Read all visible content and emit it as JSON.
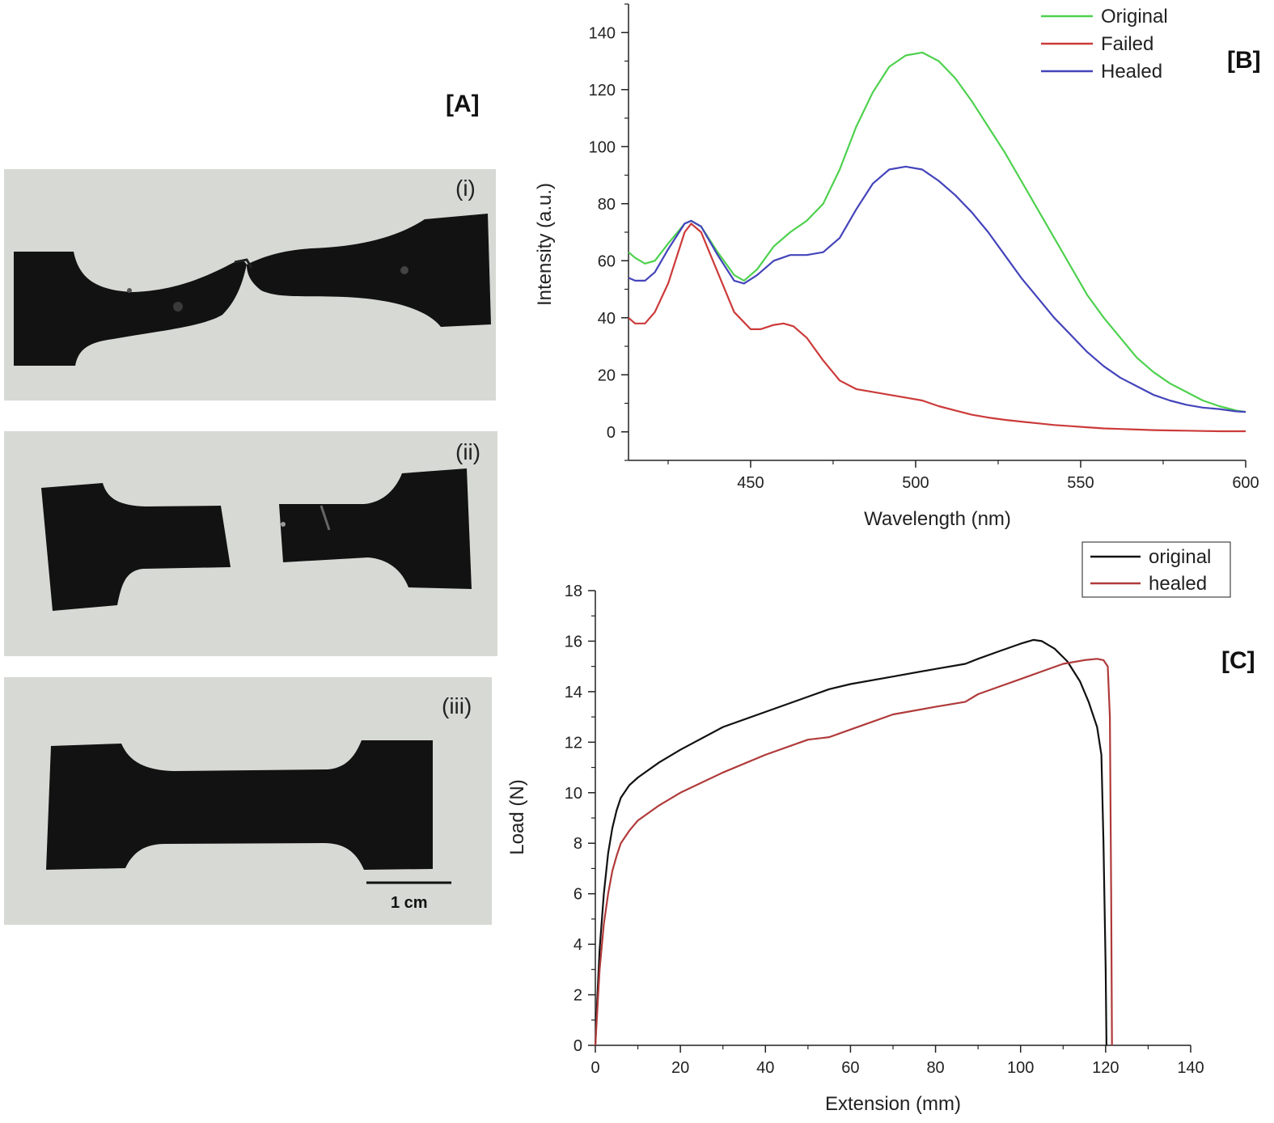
{
  "panels": {
    "a_label": "[A]",
    "b_label": "[B]",
    "c_label": "[C]"
  },
  "photos": {
    "labels": [
      "(i)",
      "(ii)",
      "(iii)"
    ],
    "scale_bar_label": "1 cm",
    "colors": {
      "background": "#d7d9d4",
      "specimen": "#121212"
    }
  },
  "chart_data": [
    {
      "type": "line",
      "panel": "[B]",
      "xlabel": "Wavelength (nm)",
      "ylabel": "Intensity (a.u.)",
      "xlim": [
        413,
        600
      ],
      "ylim": [
        -10,
        150
      ],
      "xticks": [
        450,
        500,
        550,
        600
      ],
      "yticks": [
        0,
        20,
        40,
        60,
        80,
        100,
        120,
        140
      ],
      "grid": false,
      "legend": "top-right",
      "series": [
        {
          "name": "Original",
          "color": "#4ed14e",
          "x": [
            413,
            415,
            418,
            421,
            425,
            430,
            432,
            435,
            440,
            445,
            448,
            452,
            457,
            462,
            467,
            472,
            477,
            482,
            487,
            492,
            497,
            502,
            507,
            512,
            517,
            522,
            527,
            532,
            537,
            542,
            547,
            552,
            557,
            562,
            567,
            572,
            577,
            582,
            587,
            592,
            597,
            600
          ],
          "y": [
            63,
            61,
            59,
            60,
            66,
            73,
            74,
            72,
            63,
            55,
            53,
            57,
            65,
            70,
            74,
            80,
            92,
            107,
            119,
            128,
            132,
            133,
            130,
            124,
            116,
            107,
            98,
            88,
            78,
            68,
            58,
            48,
            40,
            33,
            26,
            21,
            17,
            14,
            11,
            9,
            7.5,
            7
          ]
        },
        {
          "name": "Failed",
          "color": "#cc3a3a",
          "x": [
            413,
            415,
            418,
            421,
            425,
            430,
            432,
            435,
            440,
            445,
            450,
            453,
            457,
            460,
            463,
            467,
            472,
            477,
            482,
            487,
            492,
            497,
            502,
            507,
            512,
            517,
            522,
            527,
            532,
            537,
            542,
            547,
            552,
            557,
            562,
            567,
            572,
            577,
            582,
            587,
            592,
            600
          ],
          "y": [
            40,
            38,
            38,
            42,
            52,
            70,
            73,
            70,
            56,
            42,
            36,
            36,
            37.5,
            38,
            37,
            33,
            25,
            18,
            15,
            14,
            13,
            12,
            11,
            9,
            7.5,
            6,
            5,
            4.2,
            3.6,
            3,
            2.4,
            2,
            1.6,
            1.2,
            1,
            0.8,
            0.6,
            0.5,
            0.4,
            0.3,
            0.2,
            0.2
          ]
        },
        {
          "name": "Healed",
          "color": "#4444bb",
          "x": [
            413,
            415,
            418,
            421,
            425,
            430,
            432,
            435,
            440,
            445,
            448,
            452,
            457,
            462,
            467,
            472,
            477,
            482,
            487,
            492,
            497,
            502,
            507,
            512,
            517,
            522,
            527,
            532,
            537,
            542,
            547,
            552,
            557,
            562,
            567,
            572,
            577,
            582,
            587,
            592,
            597,
            600
          ],
          "y": [
            54,
            53,
            53,
            56,
            64,
            73,
            74,
            72,
            62,
            53,
            52,
            55,
            60,
            62,
            62,
            63,
            68,
            78,
            87,
            92,
            93,
            92,
            88,
            83,
            77,
            70,
            62,
            54,
            47,
            40,
            34,
            28,
            23,
            19,
            16,
            13,
            11,
            9.5,
            8.5,
            8,
            7.2,
            7
          ]
        }
      ]
    },
    {
      "type": "line",
      "panel": "[C]",
      "xlabel": "Extension (mm)",
      "ylabel": "Load (N)",
      "xlim": [
        0,
        140
      ],
      "ylim": [
        0,
        18
      ],
      "xticks": [
        0,
        20,
        40,
        60,
        80,
        100,
        120,
        140
      ],
      "yticks": [
        0,
        2,
        4,
        6,
        8,
        10,
        12,
        14,
        16,
        18
      ],
      "grid": false,
      "legend": "top-right",
      "series": [
        {
          "name": "original",
          "color": "#111111",
          "x": [
            0,
            0.5,
            1,
            2,
            3,
            4,
            5,
            6,
            8,
            10,
            15,
            20,
            30,
            40,
            50,
            55,
            60,
            70,
            80,
            87,
            90,
            95,
            100,
            103,
            105,
            108,
            111,
            114,
            116,
            118,
            119,
            119.5,
            120,
            120.2
          ],
          "y": [
            0,
            2,
            3.8,
            6,
            7.6,
            8.6,
            9.3,
            9.8,
            10.3,
            10.6,
            11.2,
            11.7,
            12.6,
            13.2,
            13.8,
            14.1,
            14.3,
            14.6,
            14.9,
            15.1,
            15.3,
            15.6,
            15.9,
            16.05,
            16.0,
            15.7,
            15.2,
            14.4,
            13.6,
            12.6,
            11.5,
            8,
            3,
            0
          ]
        },
        {
          "name": "healed",
          "color": "#b03a3a",
          "x": [
            0,
            0.5,
            1,
            2,
            3,
            4,
            5,
            6,
            8,
            10,
            15,
            20,
            30,
            40,
            50,
            55,
            60,
            70,
            80,
            87,
            90,
            95,
            100,
            105,
            110,
            115,
            118,
            119.5,
            120.5,
            121,
            121.3,
            121.5
          ],
          "y": [
            0,
            1.5,
            3,
            4.8,
            6,
            6.9,
            7.5,
            8,
            8.5,
            8.9,
            9.5,
            10,
            10.8,
            11.5,
            12.1,
            12.2,
            12.5,
            13.1,
            13.4,
            13.6,
            13.9,
            14.2,
            14.5,
            14.8,
            15.1,
            15.25,
            15.3,
            15.25,
            15.0,
            13,
            6,
            0
          ]
        }
      ]
    }
  ]
}
